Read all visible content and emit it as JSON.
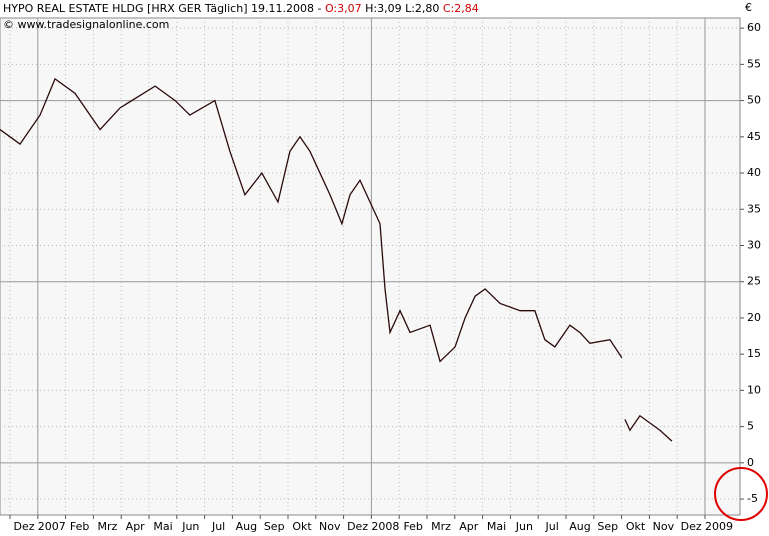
{
  "chart_data": {
    "type": "line",
    "title": "HYPO REAL ESTATE HLDG [HRX GER  Täglich] 19.11.2008 -",
    "ohlc": [
      "O:3,07",
      "H:3,09",
      "L:2,80",
      "C:2,84"
    ],
    "source": "© www.tradesignalonline.com",
    "y_axis_label": "€",
    "xlim": [
      -0.36,
      26.26
    ],
    "xticks": [
      {
        "value": 0,
        "label": "Dez"
      },
      {
        "value": 1,
        "label": "2007"
      },
      {
        "value": 2,
        "label": "Feb"
      },
      {
        "value": 3,
        "label": "Mrz"
      },
      {
        "value": 4,
        "label": "Apr"
      },
      {
        "value": 5,
        "label": "Mai"
      },
      {
        "value": 6,
        "label": "Jun"
      },
      {
        "value": 7,
        "label": "Jul"
      },
      {
        "value": 8,
        "label": "Aug"
      },
      {
        "value": 9,
        "label": "Sep"
      },
      {
        "value": 10,
        "label": "Okt"
      },
      {
        "value": 11,
        "label": "Nov"
      },
      {
        "value": 12,
        "label": "Dez"
      },
      {
        "value": 13,
        "label": "2008"
      },
      {
        "value": 14,
        "label": "Feb"
      },
      {
        "value": 15,
        "label": "Mrz"
      },
      {
        "value": 16,
        "label": "Apr"
      },
      {
        "value": 17,
        "label": "Mai"
      },
      {
        "value": 18,
        "label": "Jun"
      },
      {
        "value": 19,
        "label": "Jul"
      },
      {
        "value": 20,
        "label": "Aug"
      },
      {
        "value": 21,
        "label": "Sep"
      },
      {
        "value": 22,
        "label": "Okt"
      },
      {
        "value": 23,
        "label": "Nov"
      },
      {
        "value": 24,
        "label": "Dez"
      },
      {
        "value": 25,
        "label": "2009"
      }
    ],
    "ylim": [
      -7.2,
      61.4
    ],
    "yticks": [
      -5,
      0,
      5,
      10,
      15,
      20,
      25,
      30,
      35,
      40,
      45,
      50,
      55,
      60
    ],
    "grid": true,
    "series": [
      {
        "name": "HRX",
        "color": "#2a0a0a",
        "x": [
          -0.36,
          0.36,
          1.08,
          1.62,
          2.34,
          3.24,
          3.96,
          5.22,
          5.94,
          6.47,
          7.37,
          7.91,
          8.45,
          9.06,
          9.64,
          10.07,
          10.43,
          10.79,
          11.51,
          11.94,
          12.23,
          12.59,
          12.95,
          13.31,
          13.49,
          13.67,
          14.03,
          14.39,
          15.11,
          15.47,
          16.01,
          16.37,
          16.73,
          17.09,
          17.63,
          18.35,
          18.88,
          19.24,
          19.6,
          20.14,
          20.5,
          20.86,
          21.58,
          22.01,
          22.05,
          22.12,
          22.3,
          22.66,
          23.02,
          23.38,
          23.81
        ],
        "values": [
          46,
          44,
          48,
          53,
          51,
          46,
          49,
          52,
          50,
          48,
          50,
          43,
          37,
          40,
          36,
          43,
          45,
          43,
          37,
          33,
          37,
          39,
          36,
          33,
          24,
          18,
          21,
          18,
          19,
          14,
          16,
          20,
          23,
          24,
          22,
          21,
          21,
          17,
          16,
          19,
          18,
          16.5,
          17,
          14.5,
          null,
          6,
          4.5,
          6.5,
          5.5,
          4.5,
          3
        ]
      }
    ]
  }
}
